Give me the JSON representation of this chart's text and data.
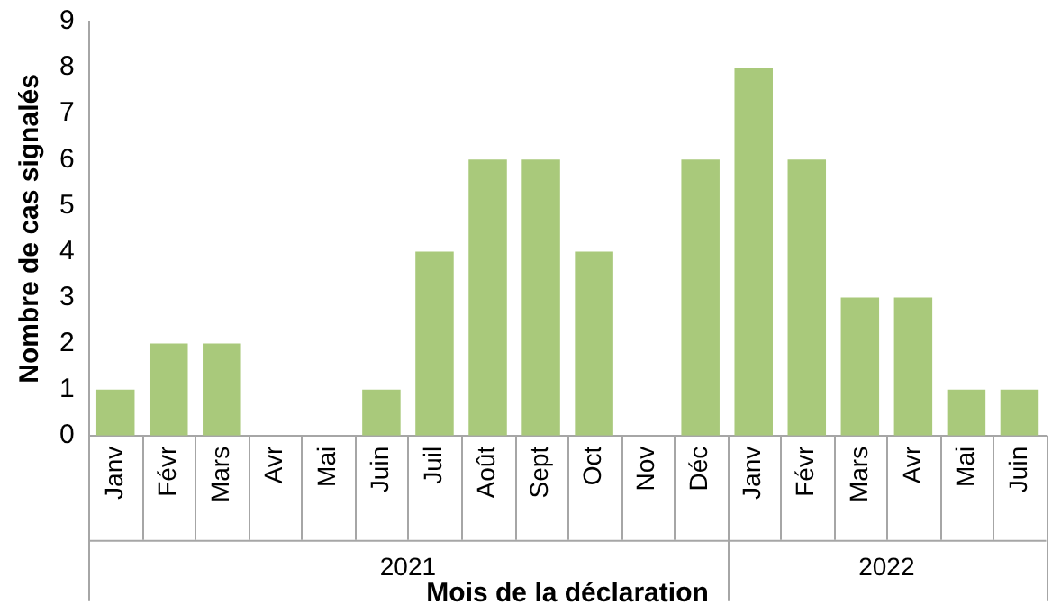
{
  "chart_data": {
    "type": "bar",
    "categories": [
      "Janv",
      "Févr",
      "Mars",
      "Avr",
      "Mai",
      "Juin",
      "Juil",
      "Août",
      "Sept",
      "Oct",
      "Nov",
      "Déc",
      "Janv",
      "Févr",
      "Mars",
      "Avr",
      "Mai",
      "Juin"
    ],
    "values": [
      1,
      2,
      2,
      0,
      0,
      1,
      4,
      6,
      6,
      4,
      0,
      6,
      8,
      6,
      3,
      3,
      1,
      1
    ],
    "color": "#a9c97b",
    "xlabel": "Mois de la déclaration",
    "ylabel": "Nombre de cas signalés",
    "annotations": [
      "2021",
      "2022"
    ],
    "ylim": [
      0,
      9
    ],
    "yticks": [
      0,
      1,
      2,
      3,
      4,
      5,
      6,
      7,
      8,
      9
    ],
    "grid": false,
    "legend": false
  }
}
